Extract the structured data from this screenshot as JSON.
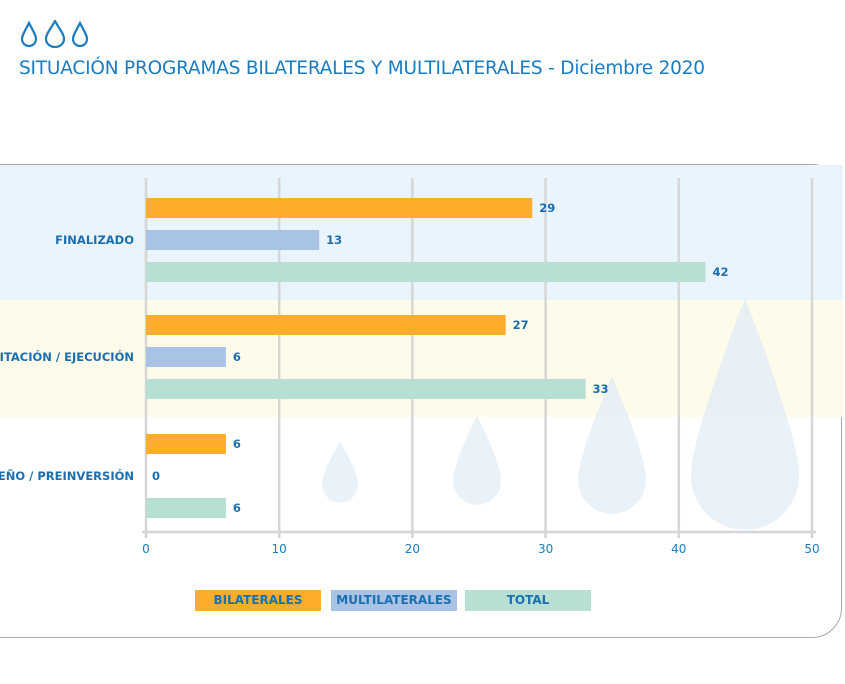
{
  "header": {
    "title": "SITUACIÓN PROGRAMAS BILATERALES Y MULTILATERALES - Diciembre 2020",
    "logo_icon": "water-drops-icon"
  },
  "colors": {
    "bilaterales": "#fbad2b",
    "multilaterales": "#a9c3e4",
    "total": "#b7dfd3",
    "text": "#1a6fb0",
    "band_1": "#e9f4fc",
    "band_2": "#fefbea"
  },
  "chart_data": {
    "type": "bar",
    "orientation": "horizontal",
    "title": "SITUACIÓN PROGRAMAS BILATERALES Y MULTILATERALES - Diciembre 2020",
    "categories": [
      "FINALIZADO",
      "LICITACIÓN / EJECUCIÓN",
      "DISEÑO / PREINVERSIÓN"
    ],
    "series": [
      {
        "name": "BILATERALES",
        "values": [
          29,
          27,
          6
        ]
      },
      {
        "name": "MULTILATERALES",
        "values": [
          13,
          6,
          0
        ]
      },
      {
        "name": "TOTAL",
        "values": [
          42,
          33,
          6
        ]
      }
    ],
    "xlim": [
      0,
      50
    ],
    "xticks": [
      0,
      10,
      20,
      30,
      40,
      50
    ],
    "grid": true,
    "legend": "bottom"
  }
}
